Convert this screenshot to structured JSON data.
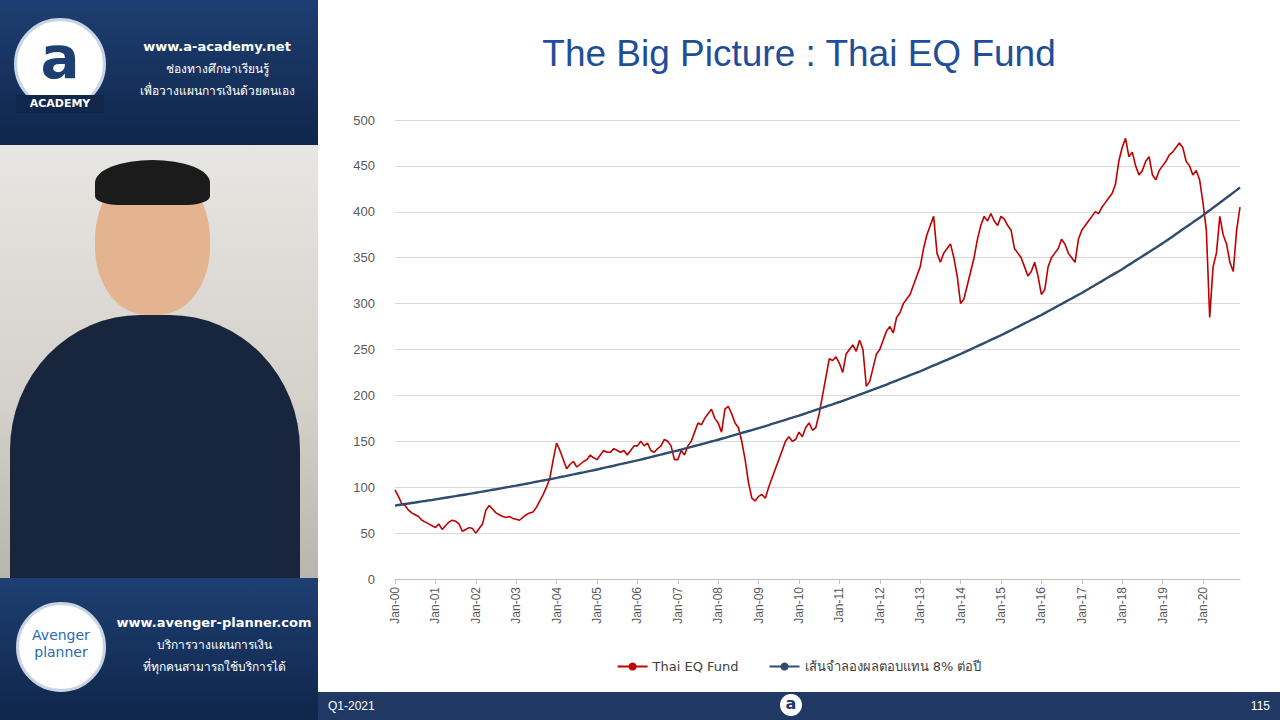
{
  "chart_data": {
    "type": "line",
    "title": "The Big Picture : Thai EQ Fund",
    "categories": [
      "Jan-00",
      null,
      null,
      null,
      null,
      null,
      null,
      null,
      null,
      null,
      null,
      null,
      "Jan-01",
      null,
      null,
      null,
      null,
      null,
      null,
      null,
      null,
      null,
      null,
      null,
      "Jan-02",
      null,
      null,
      null,
      null,
      null,
      null,
      null,
      null,
      null,
      null,
      null,
      "Jan-03",
      null,
      null,
      null,
      null,
      null,
      null,
      null,
      null,
      null,
      null,
      null,
      "Jan-04",
      null,
      null,
      null,
      null,
      null,
      null,
      null,
      null,
      null,
      null,
      null,
      "Jan-05",
      null,
      null,
      null,
      null,
      null,
      null,
      null,
      null,
      null,
      null,
      null,
      "Jan-06",
      null,
      null,
      null,
      null,
      null,
      null,
      null,
      null,
      null,
      null,
      null,
      "Jan-07",
      null,
      null,
      null,
      null,
      null,
      null,
      null,
      null,
      null,
      null,
      null,
      "Jan-08",
      null,
      null,
      null,
      null,
      null,
      null,
      null,
      null,
      null,
      null,
      null,
      "Jan-09",
      null,
      null,
      null,
      null,
      null,
      null,
      null,
      null,
      null,
      null,
      null,
      "Jan-10",
      null,
      null,
      null,
      null,
      null,
      null,
      null,
      null,
      null,
      null,
      null,
      "Jan-11",
      null,
      null,
      null,
      null,
      null,
      null,
      null,
      null,
      null,
      null,
      null,
      "Jan-12",
      null,
      null,
      null,
      null,
      null,
      null,
      null,
      null,
      null,
      null,
      null,
      "Jan-13",
      null,
      null,
      null,
      null,
      null,
      null,
      null,
      null,
      null,
      null,
      null,
      "Jan-14",
      null,
      null,
      null,
      null,
      null,
      null,
      null,
      null,
      null,
      null,
      null,
      "Jan-15",
      null,
      null,
      null,
      null,
      null,
      null,
      null,
      null,
      null,
      null,
      null,
      "Jan-16",
      null,
      null,
      null,
      null,
      null,
      null,
      null,
      null,
      null,
      null,
      null,
      "Jan-17",
      null,
      null,
      null,
      null,
      null,
      null,
      null,
      null,
      null,
      null,
      null,
      "Jan-18",
      null,
      null,
      null,
      null,
      null,
      null,
      null,
      null,
      null,
      null,
      null,
      "Jan-19",
      null,
      null,
      null,
      null,
      null,
      null,
      null,
      null,
      null,
      null,
      null,
      "Jan-20",
      null,
      null,
      null,
      null,
      null,
      null,
      null,
      null,
      null,
      null,
      null
    ],
    "series": [
      {
        "name": "Thai EQ Fund",
        "color": "#c00000",
        "line_style": "solid",
        "values": [
          97,
          90,
          82,
          80,
          75,
          72,
          70,
          68,
          64,
          62,
          60,
          58,
          56,
          60,
          54,
          58,
          62,
          64,
          63,
          60,
          52,
          54,
          56,
          55,
          50,
          55,
          60,
          75,
          80,
          76,
          72,
          70,
          68,
          67,
          68,
          66,
          65,
          64,
          67,
          70,
          72,
          73,
          78,
          85,
          92,
          100,
          110,
          130,
          148,
          140,
          130,
          120,
          125,
          128,
          122,
          125,
          128,
          130,
          135,
          132,
          130,
          135,
          140,
          138,
          138,
          142,
          140,
          138,
          140,
          135,
          140,
          145,
          145,
          150,
          145,
          148,
          140,
          138,
          142,
          145,
          152,
          150,
          145,
          130,
          130,
          140,
          135,
          145,
          150,
          160,
          170,
          168,
          175,
          180,
          185,
          175,
          170,
          160,
          185,
          188,
          180,
          170,
          165,
          150,
          130,
          105,
          88,
          85,
          90,
          92,
          88,
          100,
          110,
          120,
          130,
          140,
          150,
          155,
          150,
          152,
          160,
          155,
          165,
          170,
          162,
          165,
          180,
          200,
          220,
          240,
          238,
          242,
          235,
          225,
          245,
          250,
          255,
          248,
          260,
          250,
          210,
          215,
          230,
          245,
          250,
          260,
          270,
          275,
          268,
          285,
          290,
          300,
          305,
          310,
          320,
          330,
          340,
          360,
          375,
          385,
          395,
          355,
          345,
          355,
          360,
          365,
          350,
          330,
          300,
          305,
          320,
          335,
          350,
          370,
          385,
          395,
          390,
          398,
          390,
          385,
          395,
          392,
          385,
          380,
          360,
          355,
          350,
          340,
          330,
          335,
          345,
          330,
          310,
          315,
          340,
          350,
          355,
          360,
          370,
          365,
          355,
          350,
          345,
          370,
          380,
          385,
          390,
          395,
          400,
          398,
          405,
          410,
          415,
          420,
          430,
          455,
          470,
          480,
          460,
          465,
          450,
          440,
          445,
          455,
          460,
          440,
          435,
          445,
          450,
          455,
          462,
          465,
          470,
          475,
          470,
          455,
          450,
          440,
          445,
          435,
          410,
          380,
          285,
          340,
          355,
          395,
          375,
          365,
          345,
          335,
          380,
          405
        ]
      },
      {
        "name": "เส้นจำลองผลตอบแทน 8% ต่อปี",
        "color": "#2f4b6e",
        "line_style": "solid",
        "values": [
          80.0,
          80.6,
          81.1,
          81.7,
          82.2,
          82.8,
          83.3,
          83.9,
          84.5,
          85.0,
          85.6,
          86.1,
          86.7,
          87.3,
          87.9,
          88.5,
          89.1,
          89.7,
          90.3,
          90.9,
          91.5,
          92.1,
          92.7,
          93.3,
          93.9,
          94.6,
          95.2,
          95.9,
          96.5,
          97.2,
          97.8,
          98.5,
          99.1,
          99.8,
          100.4,
          101.1,
          101.7,
          102.4,
          103.1,
          103.8,
          104.5,
          105.2,
          105.9,
          106.6,
          107.3,
          108.0,
          108.7,
          109.4,
          110.1,
          110.9,
          111.6,
          112.4,
          113.2,
          113.9,
          114.7,
          115.5,
          116.2,
          117.0,
          117.8,
          118.5,
          119.3,
          120.1,
          121.0,
          121.8,
          122.6,
          123.4,
          124.3,
          125.1,
          125.9,
          126.7,
          127.6,
          128.4,
          129.2,
          130.1,
          131.0,
          131.9,
          132.8,
          133.7,
          134.6,
          135.5,
          136.4,
          137.3,
          138.2,
          139.1,
          140.0,
          141.0,
          142.0,
          142.9,
          143.9,
          144.9,
          145.9,
          146.8,
          147.8,
          148.8,
          149.8,
          150.7,
          151.7,
          152.8,
          153.8,
          154.9,
          155.9,
          157.0,
          158.0,
          159.1,
          160.1,
          161.2,
          162.2,
          163.3,
          164.3,
          165.4,
          166.6,
          167.7,
          168.9,
          170.0,
          171.2,
          172.3,
          173.4,
          174.6,
          175.7,
          176.9,
          178.0,
          179.2,
          180.5,
          181.7,
          182.9,
          184.2,
          185.4,
          186.6,
          187.9,
          189.1,
          190.3,
          191.6,
          192.8,
          194.1,
          195.5,
          196.8,
          198.2,
          199.5,
          200.9,
          202.2,
          203.5,
          204.9,
          206.2,
          207.6,
          208.9,
          210.4,
          211.8,
          213.3,
          214.7,
          216.2,
          217.6,
          219.1,
          220.5,
          222.0,
          223.4,
          224.9,
          226.3,
          227.9,
          229.4,
          231.0,
          232.6,
          234.1,
          235.7,
          237.3,
          238.8,
          240.4,
          242.0,
          243.5,
          245.1,
          246.8,
          248.5,
          250.2,
          251.9,
          253.6,
          255.3,
          257.0,
          258.7,
          260.4,
          262.1,
          263.8,
          265.5,
          267.3,
          269.2,
          271.0,
          272.9,
          274.7,
          276.6,
          278.4,
          280.2,
          282.1,
          283.9,
          285.8,
          287.6,
          289.6,
          291.6,
          293.6,
          295.6,
          297.6,
          299.6,
          301.6,
          303.6,
          305.6,
          307.6,
          309.6,
          311.6,
          313.8,
          315.9,
          318.1,
          320.2,
          322.4,
          324.5,
          326.7,
          328.9,
          331.0,
          333.2,
          335.3,
          337.5,
          339.8,
          342.2,
          344.5,
          346.9,
          349.2,
          351.6,
          353.9,
          356.2,
          358.6,
          360.9,
          363.3,
          365.6,
          368.1,
          370.7,
          373.2,
          375.8,
          378.3,
          380.9,
          383.4,
          385.9,
          388.5,
          391.0,
          393.6,
          396.1,
          398.9,
          401.6,
          404.4,
          407.1,
          409.9,
          412.6,
          415.4,
          418.1,
          420.9,
          423.6,
          426.4
        ]
      }
    ],
    "ylim": [
      0,
      500
    ],
    "yticks": [
      0,
      50,
      100,
      150,
      200,
      250,
      300,
      350,
      400,
      450,
      500
    ],
    "grid": true,
    "legend": "bottom"
  },
  "left_panel": {
    "logo_letter": "a",
    "logo_label": "ACADEMY",
    "site": "www.a-academy.net",
    "lines": [
      "ช่องทางศึกษาเรียนรู้",
      "เพื่อวางแผนการเงินด้วยตนเอง"
    ]
  },
  "bottom_panel": {
    "logo": [
      "Avenger",
      "planner"
    ],
    "site": "www.avenger-planner.com",
    "lines": [
      "บริการวางแผนการเงิน",
      "ที่ทุกคนสามารถใช้บริการได้"
    ]
  },
  "footer": {
    "left": "Q1-2021",
    "logo_letter": "a",
    "right": "115"
  }
}
